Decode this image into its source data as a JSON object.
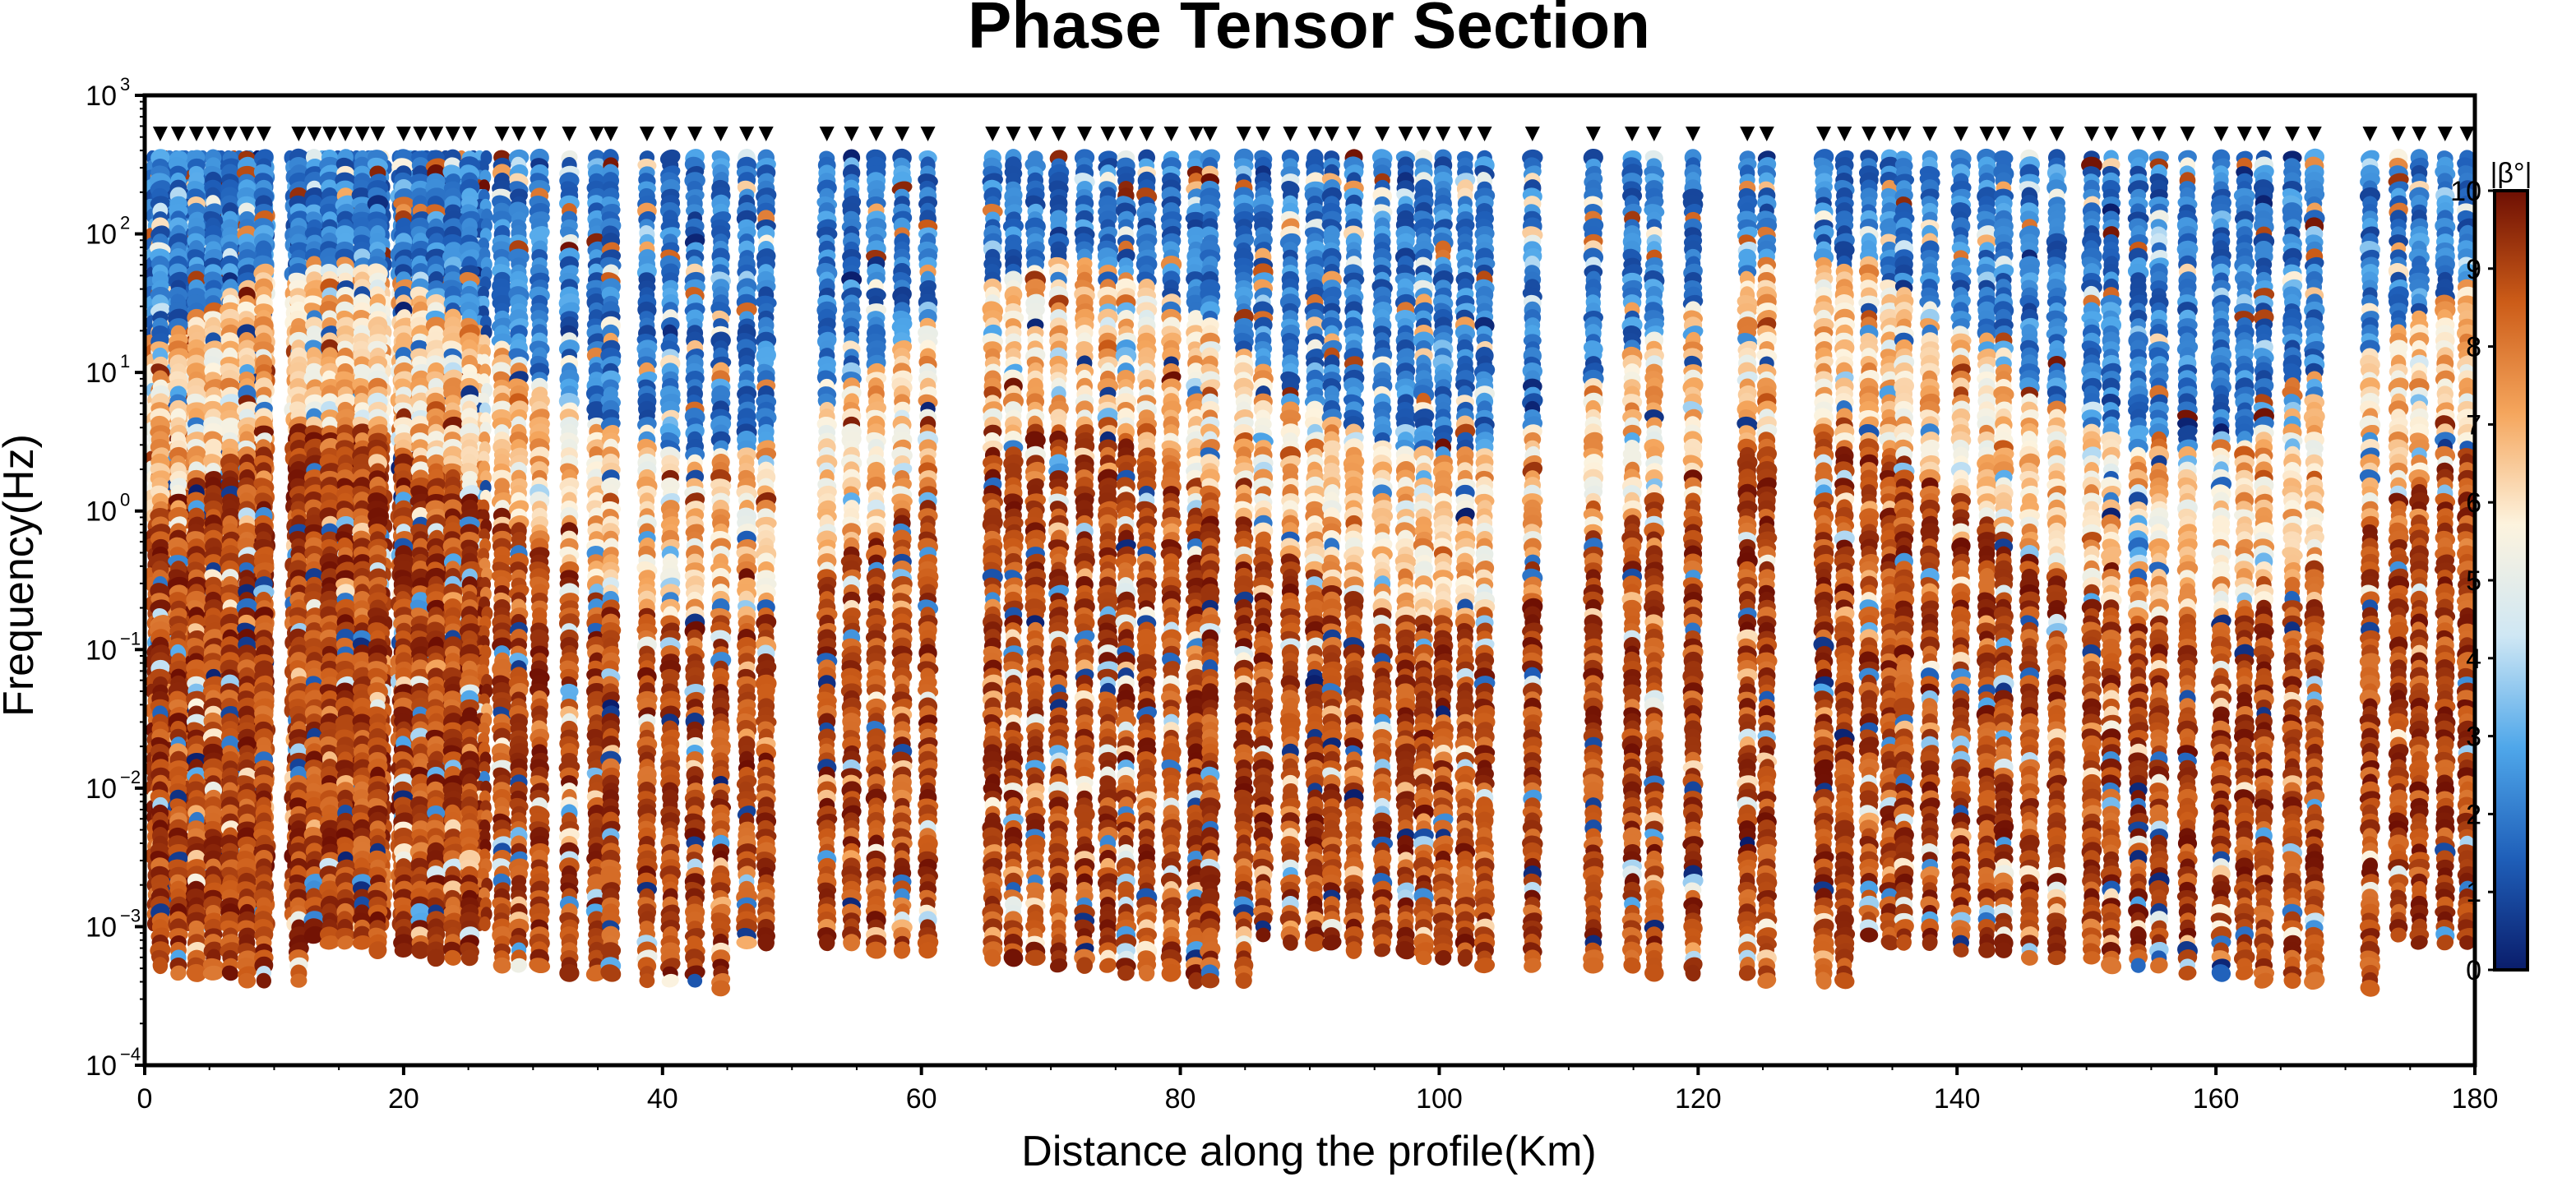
{
  "chart_data": {
    "type": "scatter",
    "title": "Phase Tensor Section",
    "xlabel": "Distance along the profile(Km)",
    "ylabel": "Frequency(Hz)",
    "xlim": [
      0,
      180
    ],
    "ylim_log10": [
      -4,
      3
    ],
    "y_scale": "log",
    "x_ticks": [
      "0",
      "20",
      "40",
      "60",
      "80",
      "100",
      "120",
      "140",
      "160",
      "180"
    ],
    "y_tick_mantissa": "10",
    "y_tick_exponents": [
      "−4",
      "−3",
      "−2",
      "−1",
      "0",
      "1",
      "2",
      "3"
    ],
    "colorbar": {
      "label": "|β°|",
      "min": 0,
      "max": 10,
      "ticks": [
        "0",
        "1",
        "2",
        "3",
        "4",
        "5",
        "6",
        "7",
        "8",
        "9",
        "10"
      ],
      "colors": [
        "#0a1d6b",
        "#1f5fb9",
        "#4fa7ea",
        "#cfe7f4",
        "#fdf3de",
        "#f5a65d",
        "#cc5c18",
        "#6e0f03"
      ]
    },
    "station_distances_km": [
      1.2,
      2.6,
      4,
      5.3,
      6.6,
      7.9,
      9.2,
      11.9,
      13.1,
      14.3,
      15.5,
      16.8,
      18,
      20,
      21.3,
      22.5,
      23.8,
      25.1,
      27.6,
      28.9,
      30.5,
      32.8,
      34.9,
      36,
      38.8,
      40.6,
      42.5,
      44.5,
      46.5,
      48,
      52.7,
      54.6,
      56.5,
      58.5,
      60.5,
      65.5,
      67.1,
      68.8,
      70.6,
      72.6,
      74.4,
      75.8,
      77.4,
      79.3,
      81.2,
      82.3,
      84.9,
      86.4,
      88.5,
      90.4,
      91.7,
      93.4,
      95.6,
      97.4,
      98.8,
      100.3,
      102,
      103.5,
      107.2,
      111.9,
      114.9,
      116.6,
      119.6,
      123.8,
      125.3,
      129.7,
      131.3,
      133.2,
      134.8,
      135.9,
      137.9,
      140.3,
      142.3,
      143.6,
      145.6,
      147.7,
      150.4,
      151.9,
      154,
      155.6,
      157.8,
      160.4,
      162.2,
      163.7,
      165.9,
      167.6,
      171.9,
      174.1,
      175.7,
      177.7,
      179.4
    ],
    "gap_columns_km": [
      [
        0.4,
        9.8
      ],
      [
        11.2,
        18.6
      ],
      [
        19.4,
        26.3
      ]
    ],
    "grid": false,
    "legend": "none"
  }
}
